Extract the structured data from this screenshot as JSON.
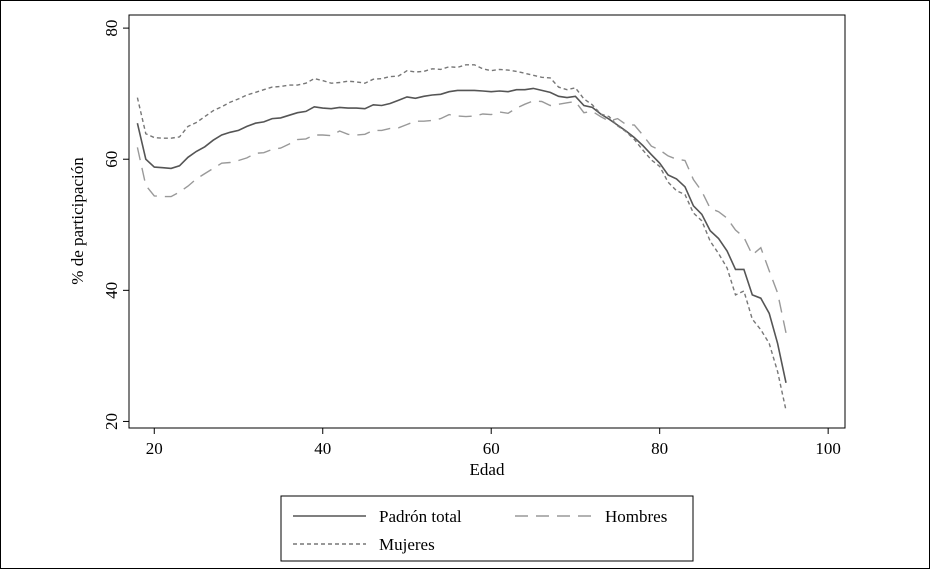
{
  "chart_data": {
    "type": "line",
    "xlabel": "Edad",
    "ylabel": "% de participación",
    "xlim": [
      17,
      102
    ],
    "ylim": [
      19,
      82
    ],
    "xticks": [
      20,
      40,
      60,
      80,
      100
    ],
    "yticks": [
      20,
      40,
      60,
      80
    ],
    "grid": false,
    "legend": "bottom",
    "series": [
      {
        "name": "Padrón total",
        "style": "solid",
        "color": "#555555",
        "x": [
          18,
          19,
          20,
          21,
          22,
          23,
          24,
          25,
          26,
          27,
          28,
          29,
          30,
          31,
          32,
          33,
          34,
          35,
          36,
          37,
          38,
          39,
          40,
          41,
          42,
          43,
          44,
          45,
          46,
          47,
          48,
          49,
          50,
          51,
          52,
          53,
          54,
          55,
          56,
          57,
          58,
          59,
          60,
          61,
          62,
          63,
          64,
          65,
          66,
          67,
          68,
          69,
          70,
          71,
          72,
          73,
          74,
          75,
          76,
          77,
          78,
          79,
          80,
          81,
          82,
          83,
          84,
          85,
          86,
          87,
          88,
          89,
          90,
          91,
          92,
          93,
          94,
          95
        ],
        "y": [
          65.5,
          60.0,
          58.8,
          58.7,
          58.6,
          59.0,
          60.3,
          61.2,
          61.9,
          62.9,
          63.7,
          64.1,
          64.4,
          65.0,
          65.5,
          65.7,
          66.2,
          66.3,
          66.7,
          67.1,
          67.3,
          68.0,
          67.8,
          67.7,
          67.9,
          67.8,
          67.8,
          67.7,
          68.3,
          68.2,
          68.5,
          69.0,
          69.5,
          69.3,
          69.6,
          69.8,
          69.9,
          70.3,
          70.5,
          70.5,
          70.5,
          70.4,
          70.3,
          70.4,
          70.3,
          70.6,
          70.6,
          70.8,
          70.5,
          70.2,
          69.6,
          69.4,
          69.6,
          68.2,
          67.9,
          66.9,
          66.1,
          65.2,
          64.3,
          63.3,
          62.1,
          60.7,
          59.4,
          57.6,
          57.0,
          55.8,
          52.9,
          51.6,
          49.1,
          47.9,
          46.0,
          43.2,
          43.2,
          39.3,
          38.8,
          36.5,
          31.9,
          25.9
        ]
      },
      {
        "name": "Hombres",
        "style": "longdash",
        "color": "#999999",
        "x": [
          18,
          19,
          20,
          21,
          22,
          23,
          24,
          25,
          26,
          27,
          28,
          29,
          30,
          31,
          32,
          33,
          34,
          35,
          36,
          37,
          38,
          39,
          40,
          41,
          42,
          43,
          44,
          45,
          46,
          47,
          48,
          49,
          50,
          51,
          52,
          53,
          54,
          55,
          56,
          57,
          58,
          59,
          60,
          61,
          62,
          63,
          64,
          65,
          66,
          67,
          68,
          69,
          70,
          71,
          72,
          73,
          74,
          75,
          76,
          77,
          78,
          79,
          80,
          81,
          82,
          83,
          84,
          85,
          86,
          87,
          88,
          89,
          90,
          91,
          92,
          93,
          94,
          95
        ],
        "y": [
          61.8,
          56.0,
          54.4,
          54.3,
          54.3,
          55.0,
          55.9,
          57.0,
          57.8,
          58.6,
          59.4,
          59.5,
          59.8,
          60.2,
          60.9,
          61.0,
          61.5,
          61.7,
          62.3,
          63.0,
          63.1,
          63.7,
          63.7,
          63.6,
          64.3,
          63.8,
          63.7,
          63.8,
          64.4,
          64.4,
          64.7,
          64.8,
          65.3,
          65.8,
          65.8,
          65.9,
          66.2,
          66.8,
          66.6,
          66.5,
          66.6,
          66.9,
          66.8,
          67.2,
          67.0,
          67.8,
          68.4,
          68.9,
          68.8,
          68.2,
          68.4,
          68.6,
          68.8,
          67.1,
          67.3,
          66.5,
          65.8,
          66.2,
          65.3,
          65.2,
          63.7,
          62.0,
          61.4,
          60.5,
          60.0,
          59.8,
          56.9,
          55.1,
          52.5,
          52.0,
          51.0,
          49.2,
          48.1,
          45.4,
          46.5,
          43.0,
          39.6,
          33.5
        ]
      },
      {
        "name": "Mujeres",
        "style": "shortdash",
        "color": "#777777",
        "x": [
          18,
          19,
          20,
          21,
          22,
          23,
          24,
          25,
          26,
          27,
          28,
          29,
          30,
          31,
          32,
          33,
          34,
          35,
          36,
          37,
          38,
          39,
          40,
          41,
          42,
          43,
          44,
          45,
          46,
          47,
          48,
          49,
          50,
          51,
          52,
          53,
          54,
          55,
          56,
          57,
          58,
          59,
          60,
          61,
          62,
          63,
          64,
          65,
          66,
          67,
          68,
          69,
          70,
          71,
          72,
          73,
          74,
          75,
          76,
          77,
          78,
          79,
          80,
          81,
          82,
          83,
          84,
          85,
          86,
          87,
          88,
          89,
          90,
          91,
          92,
          93,
          94,
          95
        ],
        "y": [
          69.4,
          63.9,
          63.3,
          63.2,
          63.2,
          63.4,
          65.0,
          65.6,
          66.5,
          67.4,
          68.0,
          68.7,
          69.2,
          69.8,
          70.2,
          70.6,
          71.0,
          71.1,
          71.3,
          71.3,
          71.6,
          72.3,
          72.0,
          71.6,
          71.7,
          71.9,
          71.8,
          71.6,
          72.2,
          72.3,
          72.6,
          72.7,
          73.5,
          73.3,
          73.4,
          73.8,
          73.7,
          74.1,
          74.0,
          74.4,
          74.4,
          73.8,
          73.5,
          73.7,
          73.6,
          73.4,
          73.1,
          72.8,
          72.5,
          72.4,
          71.0,
          70.6,
          70.9,
          69.2,
          68.3,
          66.9,
          66.5,
          65.1,
          64.2,
          63.0,
          61.4,
          59.9,
          58.9,
          56.5,
          55.2,
          54.6,
          51.8,
          50.6,
          47.5,
          45.6,
          43.4,
          39.3,
          39.9,
          35.6,
          34.0,
          31.9,
          27.6,
          21.7
        ]
      }
    ]
  }
}
